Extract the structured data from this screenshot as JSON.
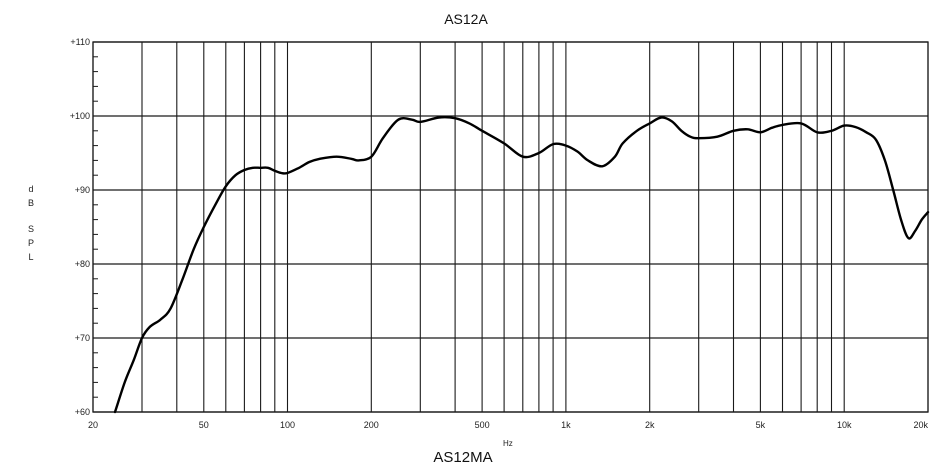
{
  "chart_data": {
    "type": "line",
    "title": "AS12A",
    "bottom_title": "AS12MA",
    "xlabel": "Hz",
    "ylabel": "dB SPL",
    "x_scale": "log",
    "xlim": [
      20,
      20000
    ],
    "ylim": [
      60,
      110
    ],
    "grid": true,
    "x_ticks": [
      {
        "value": 20,
        "label": "20"
      },
      {
        "value": 50,
        "label": "50"
      },
      {
        "value": 100,
        "label": "100"
      },
      {
        "value": 200,
        "label": "200"
      },
      {
        "value": 500,
        "label": "500"
      },
      {
        "value": 1000,
        "label": "1k"
      },
      {
        "value": 2000,
        "label": "2k"
      },
      {
        "value": 5000,
        "label": "5k"
      },
      {
        "value": 10000,
        "label": "10k"
      },
      {
        "value": 20000,
        "label": "20k"
      }
    ],
    "y_ticks": [
      {
        "value": 110,
        "label": "+110"
      },
      {
        "value": 100,
        "label": "+100"
      },
      {
        "value": 90,
        "label": "+90"
      },
      {
        "value": 80,
        "label": "+80"
      },
      {
        "value": 70,
        "label": "+70"
      },
      {
        "value": 60,
        "label": "+60"
      }
    ],
    "series": [
      {
        "x": [
          24,
          26,
          28,
          30,
          32,
          35,
          38,
          42,
          46,
          50,
          55,
          60,
          65,
          70,
          75,
          80,
          85,
          90,
          95,
          100,
          110,
          120,
          130,
          150,
          170,
          180,
          200,
          220,
          250,
          280,
          300,
          350,
          400,
          450,
          500,
          600,
          700,
          800,
          900,
          1000,
          1100,
          1200,
          1350,
          1500,
          1600,
          1800,
          2000,
          2200,
          2400,
          2600,
          2800,
          3000,
          3500,
          4000,
          4500,
          5000,
          5500,
          6000,
          7000,
          8000,
          9000,
          10000,
          11000,
          12000,
          13000,
          14000,
          15000,
          16000,
          17000,
          18000,
          19000,
          20000
        ],
        "y": [
          60,
          64,
          67,
          70,
          71.5,
          72.5,
          74,
          78,
          82,
          85,
          88,
          90.5,
          92,
          92.7,
          93,
          93,
          93,
          92.6,
          92.3,
          92.3,
          93,
          93.8,
          94.2,
          94.5,
          94.2,
          94,
          94.5,
          97,
          99.5,
          99.5,
          99.2,
          99.8,
          99.7,
          99,
          98,
          96.3,
          94.5,
          95,
          96.2,
          96,
          95.2,
          94,
          93.2,
          94.5,
          96.3,
          98,
          99,
          99.8,
          99.3,
          98,
          97.2,
          97,
          97.2,
          98,
          98.2,
          97.8,
          98.4,
          98.8,
          99,
          97.8,
          98,
          98.7,
          98.5,
          97.8,
          96.8,
          94,
          90,
          86,
          83.5,
          84.5,
          86,
          87
        ]
      }
    ]
  }
}
